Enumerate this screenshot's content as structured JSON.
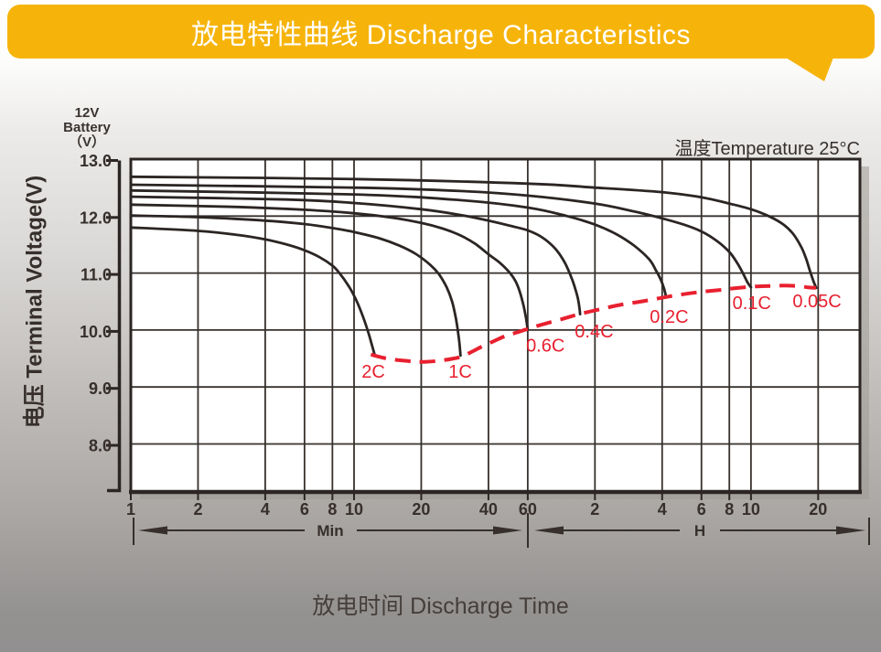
{
  "header": {
    "title": "放电特性曲线 Discharge Characteristics"
  },
  "chart": {
    "unit_label": {
      "l1": "12V",
      "l2": "Battery",
      "l3": "（V）"
    },
    "temperature_label": "温度Temperature 25°C",
    "y_axis_title": "电压 Terminal Voltage(V)",
    "x_axis_title": "放电时间 Discharge Time",
    "min_section_label": "Min",
    "hour_section_label": "H",
    "accent_yellow": "#F6B40B",
    "curve_black": "#2b2523",
    "curve_red": "#E8202F"
  },
  "chart_data": {
    "type": "line",
    "title": "放电特性曲线 Discharge Characteristics",
    "xlabel": "放电时间 Discharge Time",
    "ylabel": "电压 Terminal Voltage(V)",
    "x_scale": "log",
    "x_unit": "minutes",
    "x_range_minutes": [
      1,
      1846
    ],
    "y_range_volts": [
      7.16,
      13.0
    ],
    "grid": true,
    "legend_position": "inline-labels",
    "y_ticks": [
      {
        "v": 13.0,
        "label": "13.0"
      },
      {
        "v": 12.0,
        "label": "12.0"
      },
      {
        "v": 11.0,
        "label": "11.0"
      },
      {
        "v": 10.0,
        "label": "10.0"
      },
      {
        "v": 9.0,
        "label": "9.0"
      },
      {
        "v": 8.0,
        "label": "8.0"
      }
    ],
    "x_ticks_minutes": [
      {
        "t": 1,
        "label": "1"
      },
      {
        "t": 2,
        "label": "2"
      },
      {
        "t": 4,
        "label": "4"
      },
      {
        "t": 6,
        "label": "6"
      },
      {
        "t": 8,
        "label": "8"
      },
      {
        "t": 10,
        "label": "10"
      },
      {
        "t": 20,
        "label": "20"
      },
      {
        "t": 40,
        "label": "40"
      },
      {
        "t": 60,
        "label": "60"
      }
    ],
    "x_ticks_hours": [
      {
        "t": 120,
        "label": "2"
      },
      {
        "t": 240,
        "label": "4"
      },
      {
        "t": 360,
        "label": "6"
      },
      {
        "t": 480,
        "label": "8"
      },
      {
        "t": 600,
        "label": "10"
      },
      {
        "t": 1200,
        "label": "20"
      }
    ],
    "series": [
      {
        "name": "0.05C",
        "color": "#2b2523",
        "style": "solid",
        "label_t": 1186,
        "label_v": 10.51,
        "points": [
          [
            1,
            12.69
          ],
          [
            10,
            12.65
          ],
          [
            60,
            12.57
          ],
          [
            120,
            12.5
          ],
          [
            240,
            12.42
          ],
          [
            360,
            12.33
          ],
          [
            480,
            12.22
          ],
          [
            600,
            12.12
          ],
          [
            720,
            12.0
          ],
          [
            840,
            11.85
          ],
          [
            930,
            11.68
          ],
          [
            1010,
            11.45
          ],
          [
            1060,
            11.25
          ],
          [
            1100,
            11.05
          ],
          [
            1140,
            10.87
          ],
          [
            1175,
            10.74
          ]
        ]
      },
      {
        "name": "0.1C",
        "color": "#2b2523",
        "style": "solid",
        "label_t": 605,
        "label_v": 10.48,
        "points": [
          [
            1,
            12.55
          ],
          [
            10,
            12.5
          ],
          [
            30,
            12.44
          ],
          [
            60,
            12.36
          ],
          [
            120,
            12.22
          ],
          [
            180,
            12.08
          ],
          [
            240,
            11.96
          ],
          [
            300,
            11.85
          ],
          [
            360,
            11.73
          ],
          [
            420,
            11.57
          ],
          [
            480,
            11.37
          ],
          [
            520,
            11.18
          ],
          [
            555,
            10.98
          ],
          [
            580,
            10.83
          ],
          [
            600,
            10.75
          ]
        ]
      },
      {
        "name": "0.2C",
        "color": "#2b2523",
        "style": "solid",
        "label_t": 258,
        "label_v": 10.24,
        "points": [
          [
            1,
            12.45
          ],
          [
            10,
            12.38
          ],
          [
            30,
            12.28
          ],
          [
            60,
            12.15
          ],
          [
            90,
            12.0
          ],
          [
            120,
            11.85
          ],
          [
            150,
            11.68
          ],
          [
            180,
            11.48
          ],
          [
            210,
            11.24
          ],
          [
            225,
            11.05
          ],
          [
            237,
            10.88
          ],
          [
            245,
            10.72
          ],
          [
            250,
            10.58
          ]
        ]
      },
      {
        "name": "0.4C",
        "color": "#2b2523",
        "style": "solid",
        "label_t": 119,
        "label_v": 9.98,
        "points": [
          [
            1,
            12.34
          ],
          [
            5,
            12.29
          ],
          [
            10,
            12.23
          ],
          [
            20,
            12.12
          ],
          [
            30,
            12.02
          ],
          [
            40,
            11.92
          ],
          [
            50,
            11.83
          ],
          [
            60,
            11.75
          ],
          [
            70,
            11.62
          ],
          [
            80,
            11.42
          ],
          [
            88,
            11.18
          ],
          [
            95,
            10.88
          ],
          [
            100,
            10.6
          ],
          [
            102,
            10.42
          ],
          [
            103,
            10.28
          ]
        ]
      },
      {
        "name": "0.6C",
        "color": "#2b2523",
        "style": "solid",
        "label_t": 72,
        "label_v": 9.73,
        "points": [
          [
            1,
            12.2
          ],
          [
            3,
            12.16
          ],
          [
            6,
            12.11
          ],
          [
            10,
            12.05
          ],
          [
            15,
            11.97
          ],
          [
            20,
            11.88
          ],
          [
            25,
            11.78
          ],
          [
            30,
            11.66
          ],
          [
            35,
            11.51
          ],
          [
            40,
            11.33
          ],
          [
            45,
            11.18
          ],
          [
            50,
            11.0
          ],
          [
            53,
            10.85
          ],
          [
            55.5,
            10.65
          ],
          [
            57.5,
            10.42
          ],
          [
            59,
            10.2
          ],
          [
            60,
            10.0
          ]
        ]
      },
      {
        "name": "1C",
        "color": "#2b2523",
        "style": "solid",
        "label_t": 29.9,
        "label_v": 9.28,
        "points": [
          [
            1,
            12.01
          ],
          [
            2,
            11.98
          ],
          [
            4,
            11.92
          ],
          [
            6,
            11.86
          ],
          [
            8,
            11.79
          ],
          [
            10,
            11.72
          ],
          [
            13,
            11.61
          ],
          [
            16,
            11.48
          ],
          [
            19,
            11.33
          ],
          [
            22,
            11.14
          ],
          [
            24,
            10.98
          ],
          [
            26,
            10.75
          ],
          [
            27.5,
            10.5
          ],
          [
            28.6,
            10.2
          ],
          [
            29.5,
            9.85
          ],
          [
            30,
            9.55
          ]
        ]
      },
      {
        "name": "2C",
        "color": "#2b2523",
        "style": "solid",
        "label_t": 12.2,
        "label_v": 9.28,
        "points": [
          [
            1,
            11.8
          ],
          [
            2,
            11.74
          ],
          [
            3,
            11.67
          ],
          [
            4,
            11.59
          ],
          [
            5,
            11.5
          ],
          [
            6,
            11.4
          ],
          [
            7,
            11.28
          ],
          [
            8,
            11.13
          ],
          [
            8.6,
            11.0
          ],
          [
            9.5,
            10.76
          ],
          [
            10.3,
            10.5
          ],
          [
            11,
            10.22
          ],
          [
            11.6,
            9.95
          ],
          [
            12,
            9.75
          ],
          [
            12.4,
            9.55
          ]
        ]
      }
    ],
    "envelope": {
      "name": "discharge-cutoff-envelope",
      "color": "#E8202F",
      "style": "dashed",
      "points": [
        [
          11.9,
          9.57
        ],
        [
          14,
          9.5
        ],
        [
          17,
          9.46
        ],
        [
          20,
          9.44
        ],
        [
          24,
          9.46
        ],
        [
          28,
          9.5
        ],
        [
          30,
          9.53
        ],
        [
          33,
          9.6
        ],
        [
          37,
          9.7
        ],
        [
          42,
          9.8
        ],
        [
          48,
          9.9
        ],
        [
          54,
          9.96
        ],
        [
          60,
          10.02
        ],
        [
          70,
          10.1
        ],
        [
          85,
          10.19
        ],
        [
          102,
          10.28
        ],
        [
          125,
          10.36
        ],
        [
          155,
          10.44
        ],
        [
          200,
          10.51
        ],
        [
          250,
          10.58
        ],
        [
          300,
          10.63
        ],
        [
          360,
          10.67
        ],
        [
          430,
          10.7
        ],
        [
          500,
          10.73
        ],
        [
          600,
          10.76
        ],
        [
          700,
          10.77
        ],
        [
          840,
          10.78
        ],
        [
          980,
          10.77
        ],
        [
          1080,
          10.75
        ],
        [
          1175,
          10.74
        ]
      ]
    }
  }
}
